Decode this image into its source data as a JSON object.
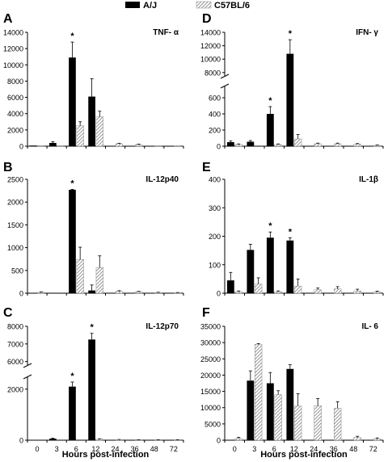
{
  "legend": [
    {
      "label": "A/J",
      "style": "solid"
    },
    {
      "label": "C57BL/6",
      "style": "hatched"
    }
  ],
  "x_axis_title": "Hours post-infection",
  "significance_marker": "*",
  "chart_data": [
    {
      "type": "bar",
      "panel": "A",
      "title": "TNF- α",
      "categories": [
        "0",
        "3",
        "6",
        "12",
        "24",
        "36",
        "48",
        "72"
      ],
      "ylim": [
        0,
        14000
      ],
      "yticks": [
        0,
        2000,
        4000,
        6000,
        8000,
        10000,
        12000,
        14000
      ],
      "series": [
        {
          "name": "A/J",
          "values": [
            0,
            400,
            10900,
            6100,
            null,
            null,
            null,
            null
          ],
          "errors": [
            0,
            150,
            1900,
            2200,
            null,
            null,
            null,
            null
          ]
        },
        {
          "name": "C57BL/6",
          "values": [
            0,
            0,
            2500,
            3600,
            300,
            200,
            0,
            0
          ],
          "errors": [
            0,
            0,
            500,
            700,
            60,
            60,
            0,
            0
          ]
        }
      ],
      "significant": [
        "6"
      ],
      "show_x_labels": false
    },
    {
      "type": "bar",
      "panel": "B",
      "title": "IL-12p40",
      "categories": [
        "0",
        "3",
        "6",
        "12",
        "24",
        "36",
        "48",
        "72"
      ],
      "ylim": [
        0,
        2500
      ],
      "yticks": [
        0,
        500,
        1000,
        1500,
        2000,
        2500
      ],
      "series": [
        {
          "name": "A/J",
          "values": [
            null,
            null,
            2270,
            60,
            null,
            null,
            null,
            null
          ],
          "errors": [
            null,
            null,
            10,
            120,
            null,
            null,
            null,
            null
          ]
        },
        {
          "name": "C57BL/6",
          "values": [
            20,
            null,
            740,
            560,
            40,
            30,
            15,
            10
          ],
          "errors": [
            8,
            null,
            270,
            260,
            15,
            10,
            5,
            5
          ]
        }
      ],
      "significant": [
        "6"
      ],
      "show_x_labels": false
    },
    {
      "type": "bar",
      "panel": "C",
      "title": "IL-12p70",
      "categories": [
        "0",
        "3",
        "6",
        "12",
        "24",
        "36",
        "48",
        "72"
      ],
      "axis_break": {
        "low_max": 2500,
        "high_min": 5800,
        "high_max": 8000
      },
      "yticks": [
        0,
        2000,
        6000,
        7000,
        8000
      ],
      "series": [
        {
          "name": "A/J",
          "values": [
            null,
            60,
            2100,
            7250,
            null,
            null,
            null,
            null
          ],
          "errors": [
            null,
            20,
            180,
            350,
            null,
            null,
            null,
            null
          ]
        },
        {
          "name": "C57BL/6",
          "values": [
            null,
            null,
            null,
            40,
            20,
            15,
            10,
            10
          ],
          "errors": [
            null,
            null,
            null,
            15,
            8,
            5,
            5,
            5
          ]
        }
      ],
      "significant": [
        "6",
        "12"
      ],
      "show_x_labels": true
    },
    {
      "type": "bar",
      "panel": "D",
      "title": "IFN- γ",
      "categories": [
        "0",
        "3",
        "6",
        "12",
        "24",
        "36",
        "48",
        "72"
      ],
      "axis_break": {
        "low_max": 750,
        "high_min": 7500,
        "high_max": 14000
      },
      "yticks": [
        0,
        200,
        400,
        600,
        8000,
        10000,
        12000,
        14000
      ],
      "series": [
        {
          "name": "A/J",
          "values": [
            50,
            55,
            400,
            10800,
            null,
            null,
            null,
            null
          ],
          "errors": [
            15,
            15,
            90,
            2100,
            null,
            null,
            null,
            null
          ]
        },
        {
          "name": "C57BL/6",
          "values": [
            20,
            null,
            20,
            90,
            30,
            30,
            25,
            10
          ],
          "errors": [
            8,
            null,
            8,
            55,
            8,
            8,
            8,
            5
          ]
        }
      ],
      "significant": [
        "6",
        "12"
      ],
      "show_x_labels": false
    },
    {
      "type": "bar",
      "panel": "E",
      "title": "IL-1β",
      "categories": [
        "0",
        "3",
        "6",
        "12",
        "24",
        "36",
        "48",
        "72"
      ],
      "ylim": [
        0,
        400
      ],
      "yticks": [
        0,
        100,
        200,
        300,
        400
      ],
      "series": [
        {
          "name": "A/J",
          "values": [
            45,
            152,
            195,
            185,
            null,
            null,
            null,
            null
          ],
          "errors": [
            28,
            20,
            20,
            10,
            null,
            null,
            null,
            null
          ]
        },
        {
          "name": "C57BL/6",
          "values": [
            5,
            32,
            5,
            25,
            12,
            15,
            8,
            4
          ],
          "errors": [
            3,
            22,
            3,
            25,
            6,
            8,
            6,
            3
          ]
        }
      ],
      "significant": [
        "6",
        "12"
      ],
      "show_x_labels": false
    },
    {
      "type": "bar",
      "panel": "F",
      "title": "IL- 6",
      "categories": [
        "0",
        "3",
        "6",
        "12",
        "24",
        "36",
        "48",
        "72"
      ],
      "ylim": [
        0,
        35000
      ],
      "yticks": [
        0,
        5000,
        10000,
        15000,
        20000,
        25000,
        30000,
        35000
      ],
      "series": [
        {
          "name": "A/J",
          "values": [
            null,
            18300,
            17500,
            21900,
            null,
            null,
            null,
            null
          ],
          "errors": [
            null,
            3000,
            3300,
            1300,
            null,
            null,
            null,
            null
          ]
        },
        {
          "name": "C57BL/6",
          "values": [
            500,
            29500,
            14000,
            10500,
            10600,
            9800,
            800,
            400
          ],
          "errors": [
            400,
            200,
            1200,
            3800,
            2200,
            2000,
            400,
            300
          ]
        }
      ],
      "significant": [],
      "show_x_labels": true
    }
  ]
}
